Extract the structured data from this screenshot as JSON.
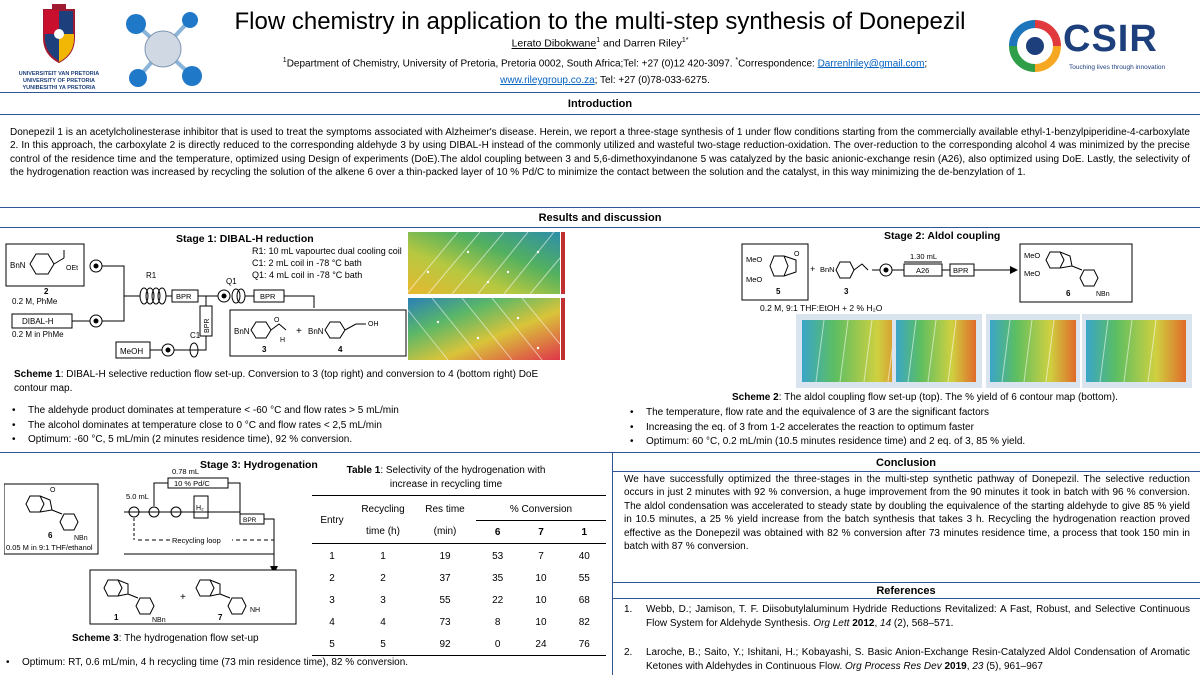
{
  "header": {
    "title": "Flow chemistry in application to the multi-step synthesis of Donepezil",
    "author1": "Lerato Dibokwane",
    "author1_sup": "1",
    "authors_and": " and Darren Riley",
    "author2_sup": "1*",
    "affil_sup": "1",
    "affiliation": "Department  of Chemistry, University of Pretoria, Pretoria 0002, South Africa;Tel: +27 (0)12 420-3097. ",
    "corr_sup": "*",
    "correspondence_label": "Correspondence: ",
    "email": "Darrenlriley@gmail.com",
    "sep": ";",
    "website": "www.rileygroup.co.za",
    "tel2": "; Tel: +27 (0)78-033-6275.",
    "up_logo": [
      "UNIVERSITEIT VAN PRETORIA",
      "UNIVERSITY OF PRETORIA",
      "YUNIBESITHI YA PRETORIA"
    ],
    "csir_name": "CSIR",
    "csir_tagline": "Touching lives through innovation"
  },
  "introduction": {
    "heading": "Introduction",
    "text": "Donepezil 1 is an acetylcholinesterase inhibitor that is used to treat the symptoms associated with Alzheimer's disease. Herein, we report a three-stage synthesis of 1 under flow conditions starting from the commercially available ethyl-1-benzylpiperidine-4-carboxylate 2. In this approach, the carboxylate 2 is directly reduced to the corresponding aldehyde 3 by using DIBAL-H instead of the commonly utilized and wasteful two-stage reduction-oxidation. The over-reduction to the corresponding alcohol 4 was minimized by the precise control of the residence time and the temperature, optimized using Design of experiments (DoE).The aldol coupling between 3 and 5,6-dimethoxyindanone 5 was catalyzed by the basic anionic-exchange resin (A26), also optimized using DoE. Lastly, the selectivity of the hydrogenation reaction was increased by recycling the solution of the alkene 6 over a thin-packed layer of 10 % Pd/C to minimize the contact between  the solution and the catalyst, in this way minimizing the de-benzylation of 1."
  },
  "results": {
    "heading": "Results and discussion",
    "stage1": {
      "title": "Stage 1: DIBAL-H reduction",
      "conditions": [
        "R1: 10 mL vapourtec dual cooling coil",
        "C1: 2 mL coil in -78 °C bath",
        "Q1: 4 mL coil in -78 °C bath"
      ],
      "reagent1": "BnN",
      "reagent1_label": "2",
      "reagent1_conc": "0.2 M, PhMe",
      "reagent2": "DIBAL-H",
      "reagent2_conc": "0.2 M in PhMe",
      "quench": "MeOH",
      "r1": "R1",
      "q1": "Q1",
      "c1": "C1",
      "bpr1": "BPR",
      "bpr2": "BPR",
      "bpr3": "BPR",
      "prod3": "3",
      "prod4": "4",
      "scheme_label": "Scheme 1",
      "scheme_text": ": DIBAL-H  selective reduction flow set-up. Conversion to 3 (top right) and conversion to 4 (bottom right) DoE contour map.",
      "bullets": [
        "The aldehyde product dominates at temperature  < -60 °C and flow rates > 5 mL/min",
        "The alcohol dominates at temperature  close to 0 °C and flow rates < 2,5 mL/min",
        "Optimum: -60 °C, 5 mL/min (2 minutes residence time), 92 % conversion."
      ]
    },
    "stage2": {
      "title": "Stage 2: Aldol coupling",
      "meo": "MeO",
      "coil": "1.30 mL",
      "resin": "A26",
      "bpr": "BPR",
      "cmpd5": "5",
      "cmpd3": "3",
      "cmpd6": "6",
      "conditions": "0.2 M, 9:1 THF:EtOH + 2 % H₂O",
      "scheme_label": "Scheme 2",
      "scheme_text": ":  The  aldol coupling flow set-up (top). The % yield of 6 contour map (bottom).",
      "bullets": [
        "The temperature,  flow rate and the equivalence of 3 are the  significant factors",
        "Increasing the eq. of 3 from 1-2 accelerates the reaction to optimum faster",
        "Optimum: 60 °C, 0.2 mL/min (10.5 minutes residence time) and 2 eq. of 3, 85 % yield."
      ]
    },
    "stage3": {
      "title": "Stage 3: Hydrogenation",
      "vol1": "0.78 mL",
      "catalyst": "10 % Pd/C",
      "vol2": "5.0 mL",
      "h2": "H₂",
      "bpr": "BPR",
      "loop": "Recycling loop",
      "cmpd6": "6",
      "conc": "0.05 M in 9:1 THF/ethanol",
      "cmpd1": "1",
      "cmpd7": "7",
      "scheme_label": "Scheme 3",
      "scheme_text": ": The  hydrogenation flow set-up",
      "bullets": [
        "Optimum: RT, 0.6 mL/min,   4 h recycling time (73 min residence time), 82 % conversion."
      ]
    },
    "table1": {
      "label": "Table 1",
      "caption": ": Selectivity of the hydrogenation with increase in recycling time",
      "headers": [
        "Entry",
        "Recycling",
        "time (h)",
        "Res time",
        "(min)",
        "% Conversion",
        "6",
        "7",
        "1"
      ],
      "rows": [
        [
          "1",
          "1",
          "19",
          "53",
          "7",
          "40"
        ],
        [
          "2",
          "2",
          "37",
          "35",
          "10",
          "55"
        ],
        [
          "3",
          "3",
          "55",
          "22",
          "10",
          "68"
        ],
        [
          "4",
          "4",
          "73",
          "8",
          "10",
          "82"
        ],
        [
          "5",
          "5",
          "92",
          "0",
          "24",
          "76"
        ]
      ]
    }
  },
  "conclusion": {
    "heading": "Conclusion",
    "text": "We have successfully optimized the three-stages in the multi-step synthetic pathway of Donepezil.  The selective reduction occurs in just 2 minutes with 92 % conversion, a huge improvement from the 90 minutes it took in batch with 96 % conversion. The aldol condensation was accelerated to steady state by doubling the equivalence of the starting aldehyde to give 85 % yield in 10.5 minutes, a 25 % yield increase from the batch synthesis that takes 3 h. Recycling the hydrogenation reaction proved effective as the Donepezil was obtained with 82 % conversion after 73 minutes residence time, a process that took  150 min in batch with 87 % conversion."
  },
  "references": {
    "heading": "References",
    "items": [
      {
        "num": "1.",
        "text": "Webb, D.; Jamison, T. F. Diisobutylaluminum Hydride Reductions Revitalized: A Fast, Robust, and Selective Continuous Flow System  for Aldehyde Synthesis. ",
        "journal": "Org Lett",
        "year": "2012",
        "vol": "14",
        "rest": " (2), 568–571."
      },
      {
        "num": "2.",
        "text": "Laroche, B.; Saito, Y.; Ishitani, H.; Kobayashi, S. Basic Anion-Exchange Resin-Catalyzed Aldol Condensation of Aromatic Ketones with Aldehydes in Continuous Flow. ",
        "journal": "Org Process  Res Dev",
        "year": "2019",
        "vol": "23",
        "rest": " (5), 961–967"
      }
    ]
  },
  "colors": {
    "rule": "#2f5597",
    "link": "#0563c1",
    "csir_blue": "#1d3f7c",
    "up_red": "#9e1b32"
  }
}
